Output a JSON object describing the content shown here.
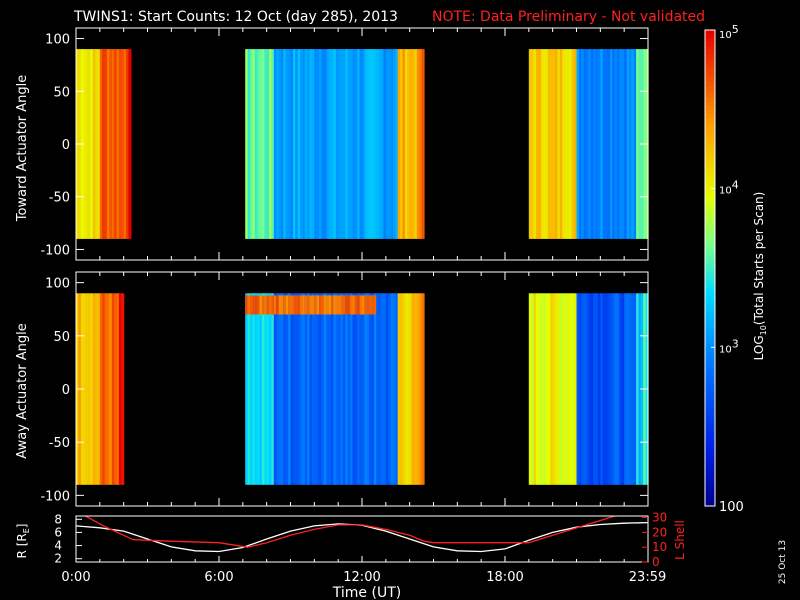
{
  "title": "TWINS1: Start Counts: 12 Oct (day 285), 2013",
  "note": "NOTE: Data Preliminary - Not validated",
  "stamp": "25 Oct 13",
  "colors": {
    "background": "#000000",
    "note": "#ff2020",
    "axis": "#ffffff",
    "lshell": "#ff2020",
    "radius": "#ffffff"
  },
  "chart_data": [
    {
      "type": "heatmap",
      "ylabel": "Toward Actuator Angle",
      "ylim": [
        -110,
        110
      ],
      "yticks": [
        "100",
        "50",
        "0",
        "-50",
        "-100"
      ],
      "ytick_values": [
        100,
        50,
        0,
        -50,
        -100
      ],
      "xlim_hours": [
        0,
        24
      ],
      "data_y_range": [
        -90,
        90
      ],
      "data_intervals_hours": [
        [
          0.0,
          2.3
        ],
        [
          7.1,
          14.6
        ],
        [
          19.0,
          24.0
        ]
      ],
      "log10_counts_profile": [
        {
          "hours_range": [
            0.0,
            1.0
          ],
          "log10": 4.1
        },
        {
          "hours_range": [
            1.0,
            2.3
          ],
          "log10": 4.7
        },
        {
          "hours_range": [
            7.1,
            8.3
          ],
          "log10": 3.6
        },
        {
          "hours_range": [
            8.3,
            13.5
          ],
          "log10": 3.1
        },
        {
          "hours_range": [
            13.5,
            14.6
          ],
          "log10": 4.3
        },
        {
          "hours_range": [
            19.0,
            21.0
          ],
          "log10": 4.2
        },
        {
          "hours_range": [
            21.0,
            23.5
          ],
          "log10": 3.0
        },
        {
          "hours_range": [
            23.5,
            24.0
          ],
          "log10": 3.5
        }
      ]
    },
    {
      "type": "heatmap",
      "ylabel": "Away Actuator Angle",
      "ylim": [
        -110,
        110
      ],
      "yticks": [
        "100",
        "50",
        "0",
        "-50",
        "-100"
      ],
      "ytick_values": [
        100,
        50,
        0,
        -50,
        -100
      ],
      "xlim_hours": [
        0,
        24
      ],
      "data_y_range": [
        -90,
        90
      ],
      "data_intervals_hours": [
        [
          0.0,
          2.0
        ],
        [
          7.1,
          14.6
        ],
        [
          19.0,
          24.0
        ]
      ],
      "log10_counts_profile": [
        {
          "hours_range": [
            0.0,
            1.0
          ],
          "log10": 4.3
        },
        {
          "hours_range": [
            1.0,
            2.0
          ],
          "log10": 4.6
        },
        {
          "hours_range": [
            7.1,
            8.3
          ],
          "log10": 3.3
        },
        {
          "hours_range": [
            8.3,
            13.5
          ],
          "log10": 2.8
        },
        {
          "hours_range": [
            13.5,
            14.6
          ],
          "log10": 4.2
        },
        {
          "hours_range": [
            19.0,
            21.0
          ],
          "log10": 4.0
        },
        {
          "hours_range": [
            21.0,
            23.5
          ],
          "log10": 2.7
        },
        {
          "hours_range": [
            23.5,
            24.0
          ],
          "log10": 3.3
        }
      ],
      "band_near_90_deg": {
        "hours_range": [
          7.1,
          12.5
        ],
        "log10": 4.6
      }
    },
    {
      "type": "line",
      "ylabel_left": "R [RE]",
      "ylabel_left_text": "R [R",
      "ylabel_left_sub": "E",
      "ylabel_left_close": "]",
      "ylabel_right": "L Shell",
      "yticks_left": [
        "8",
        "6",
        "4",
        "2"
      ],
      "ytick_values_left": [
        8,
        6,
        4,
        2
      ],
      "ylim_left": [
        1.5,
        8.5
      ],
      "yticks_right": [
        "30",
        "20",
        "10",
        "0"
      ],
      "ytick_values_right": [
        30,
        20,
        10,
        0
      ],
      "ylim_right": [
        0,
        31
      ],
      "xticks": [
        "0:00",
        "6:00",
        "12:00",
        "18:00",
        "23:59"
      ],
      "xtick_hours": [
        0,
        6,
        12,
        18,
        23.98
      ],
      "xlabel": "Time (UT)",
      "series": [
        {
          "axis": "left",
          "x": [
            0,
            1,
            2,
            3,
            4,
            5,
            6,
            7,
            8,
            9,
            10,
            11,
            12,
            13,
            14,
            15,
            16,
            17,
            18,
            19,
            20,
            21,
            22,
            23,
            24
          ],
          "values": [
            7.0,
            6.7,
            6.2,
            5.0,
            3.8,
            3.2,
            3.1,
            3.7,
            5.0,
            6.2,
            7.0,
            7.3,
            7.1,
            6.2,
            5.0,
            3.8,
            3.2,
            3.1,
            3.5,
            4.8,
            6.0,
            6.8,
            7.2,
            7.4,
            7.5
          ]
        },
        {
          "axis": "right",
          "x": [
            0.4,
            1.2,
            2.0,
            2.4,
            4.0,
            6.0,
            7.2,
            8.0,
            9.0,
            10.0,
            11.0,
            12.0,
            13.0,
            14.0,
            14.6,
            15.0,
            17.0,
            19.0,
            20.0,
            21.0,
            22.0,
            23.0
          ],
          "values": [
            31,
            24,
            18,
            15,
            14,
            13,
            10,
            13,
            18,
            22,
            25,
            25,
            22,
            18,
            14,
            13,
            13,
            13,
            18,
            23,
            28,
            33
          ]
        }
      ]
    }
  ],
  "colorbar": {
    "label": "LOG",
    "label_sub": "10",
    "label_rest": "(Total Starts per Scan)",
    "log10_range": [
      2,
      5
    ],
    "ticks": [
      {
        "base": "10",
        "exp": "5",
        "log10": 5
      },
      {
        "base": "10",
        "exp": "4",
        "log10": 4
      },
      {
        "base": "10",
        "exp": "3",
        "log10": 3
      },
      {
        "base": "100",
        "exp": "",
        "log10": 2
      }
    ]
  }
}
